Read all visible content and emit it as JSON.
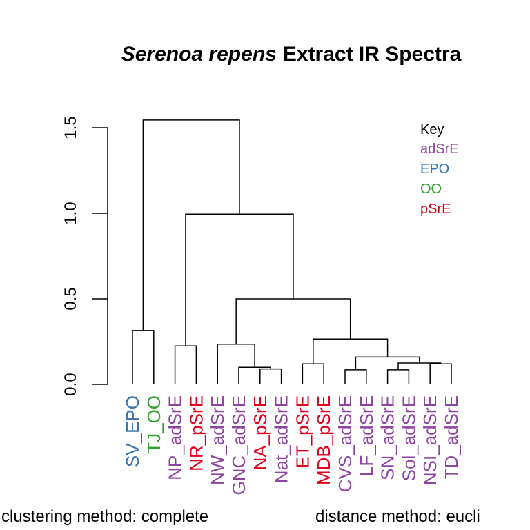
{
  "chart_data": {
    "type": "dendrogram",
    "title": {
      "italic": "Serenoa repens",
      "rest": "Extract IR Spectra"
    },
    "ylim": [
      0,
      1.55
    ],
    "yticks": [
      0.0,
      0.5,
      1.0,
      1.5
    ],
    "ytick_labels": [
      "0.0",
      "0.5",
      "1.0",
      "1.5"
    ],
    "leaves": [
      {
        "label": "SV_EPO",
        "group": "EPO"
      },
      {
        "label": "TJ_OO",
        "group": "OO"
      },
      {
        "label": "NP_adSrE",
        "group": "adSrE"
      },
      {
        "label": "NR_pSrE",
        "group": "pSrE"
      },
      {
        "label": "NW_adSrE",
        "group": "adSrE"
      },
      {
        "label": "GNC_adSrE",
        "group": "adSrE"
      },
      {
        "label": "NA_pSrE",
        "group": "pSrE"
      },
      {
        "label": "Nat_adSrE",
        "group": "adSrE"
      },
      {
        "label": "ET_pSrE",
        "group": "pSrE"
      },
      {
        "label": "MDB_pSrE",
        "group": "pSrE"
      },
      {
        "label": "CVS_adSrE",
        "group": "adSrE"
      },
      {
        "label": "LF_adSrE",
        "group": "adSrE"
      },
      {
        "label": "SN_adSrE",
        "group": "adSrE"
      },
      {
        "label": "Sol_adSrE",
        "group": "adSrE"
      },
      {
        "label": "NSI_adSrE",
        "group": "adSrE"
      },
      {
        "label": "TD_adSrE",
        "group": "adSrE"
      }
    ],
    "merges": [
      {
        "left": [
          "leaf",
          0
        ],
        "right": [
          "leaf",
          1
        ],
        "height": 0.315
      },
      {
        "left": [
          "leaf",
          2
        ],
        "right": [
          "leaf",
          3
        ],
        "height": 0.225
      },
      {
        "left": [
          "leaf",
          6
        ],
        "right": [
          "leaf",
          7
        ],
        "height": 0.09
      },
      {
        "left": [
          "leaf",
          5
        ],
        "right": [
          "node",
          2
        ],
        "height": 0.1
      },
      {
        "left": [
          "leaf",
          4
        ],
        "right": [
          "node",
          3
        ],
        "height": 0.235
      },
      {
        "left": [
          "leaf",
          8
        ],
        "right": [
          "leaf",
          9
        ],
        "height": 0.12
      },
      {
        "left": [
          "leaf",
          10
        ],
        "right": [
          "leaf",
          11
        ],
        "height": 0.085
      },
      {
        "left": [
          "leaf",
          12
        ],
        "right": [
          "leaf",
          13
        ],
        "height": 0.085
      },
      {
        "left": [
          "leaf",
          14
        ],
        "right": [
          "leaf",
          15
        ],
        "height": 0.12
      },
      {
        "left": [
          "node",
          7
        ],
        "right": [
          "node",
          8
        ],
        "height": 0.125
      },
      {
        "left": [
          "node",
          6
        ],
        "right": [
          "node",
          9
        ],
        "height": 0.16
      },
      {
        "left": [
          "node",
          5
        ],
        "right": [
          "node",
          10
        ],
        "height": 0.265
      },
      {
        "left": [
          "node",
          4
        ],
        "right": [
          "node",
          11
        ],
        "height": 0.5
      },
      {
        "left": [
          "node",
          1
        ],
        "right": [
          "node",
          12
        ],
        "height": 0.995
      },
      {
        "left": [
          "node",
          0
        ],
        "right": [
          "node",
          13
        ],
        "height": 1.545
      }
    ],
    "legend": {
      "title": "Key",
      "position": "top-right",
      "entries": [
        {
          "label": "adSrE",
          "color": "#8e44a3"
        },
        {
          "label": "EPO",
          "color": "#3a72b0"
        },
        {
          "label": "OO",
          "color": "#2ea02e"
        },
        {
          "label": "pSrE",
          "color": "#e0001b"
        }
      ]
    },
    "group_colors": {
      "adSrE": "#8e44a3",
      "EPO": "#3a72b0",
      "OO": "#2ea02e",
      "pSrE": "#e0001b"
    },
    "footer": {
      "left": "clustering method: complete",
      "right": "distance method: eucli"
    }
  }
}
